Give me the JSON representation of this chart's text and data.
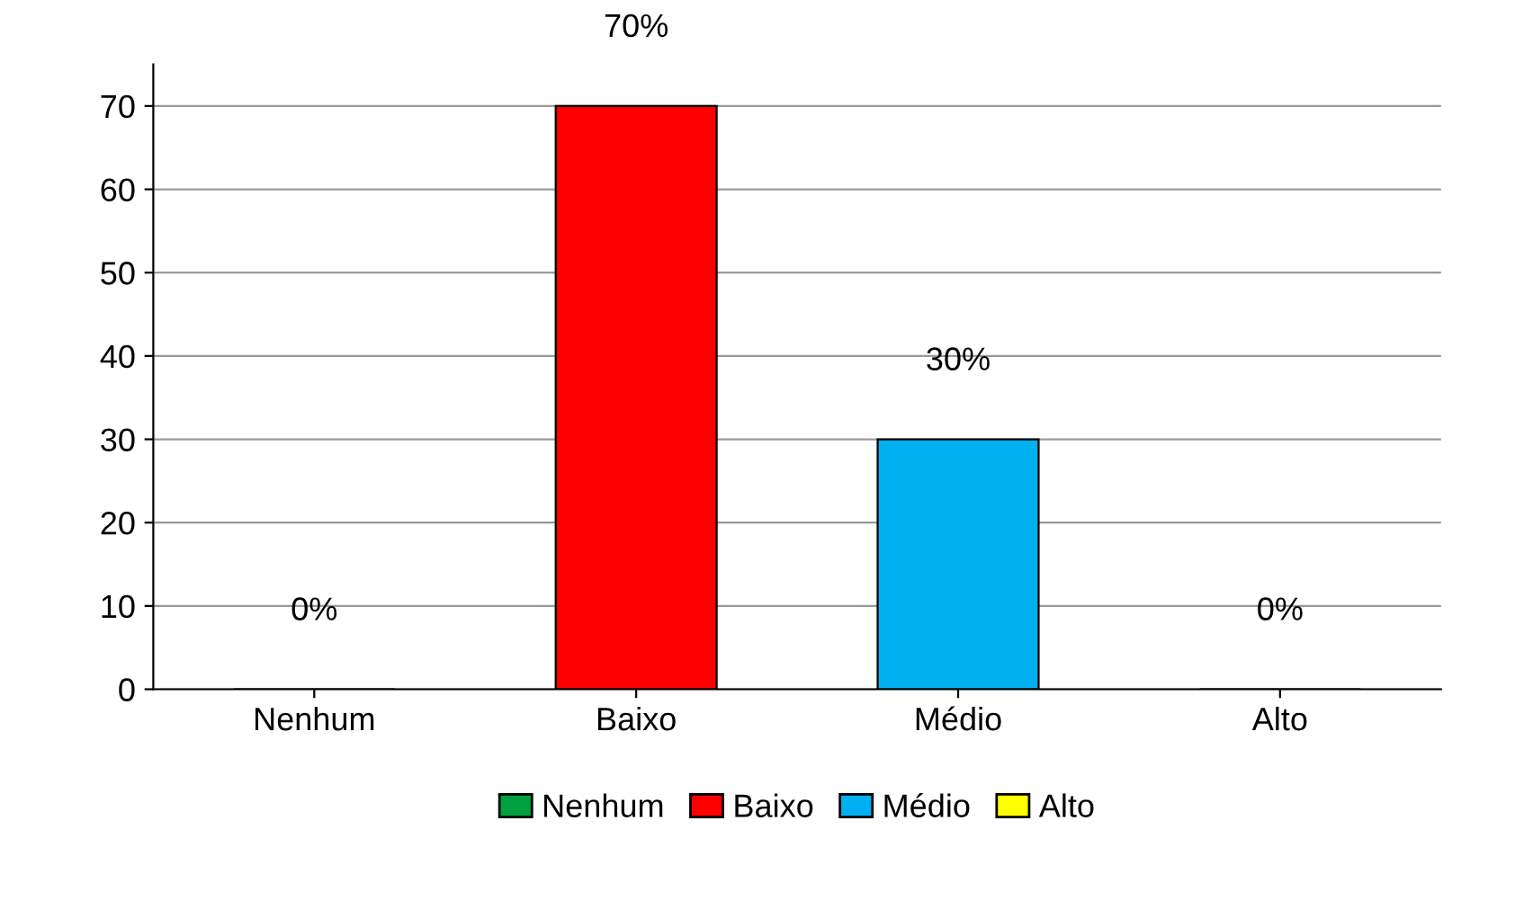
{
  "chart_data": {
    "type": "bar",
    "categories": [
      "Nenhum",
      "Baixo",
      "Médio",
      "Alto"
    ],
    "series": [
      {
        "name": "Nenhum",
        "color": "#00a040",
        "values": [
          0,
          null,
          null,
          null
        ],
        "value_labels": [
          "0%",
          null,
          null,
          null
        ]
      },
      {
        "name": "Baixo",
        "color": "#ff0000",
        "values": [
          null,
          70,
          null,
          null
        ],
        "value_labels": [
          null,
          "70%",
          null,
          null
        ]
      },
      {
        "name": "Médio",
        "color": "#00b0f0",
        "values": [
          null,
          null,
          30,
          null
        ],
        "value_labels": [
          null,
          null,
          "30%",
          null
        ]
      },
      {
        "name": "Alto",
        "color": "#ffff00",
        "values": [
          null,
          null,
          null,
          0
        ],
        "value_labels": [
          null,
          null,
          null,
          "0%"
        ]
      }
    ],
    "ylim": [
      0,
      75
    ],
    "yticks": [
      0,
      10,
      20,
      30,
      40,
      50,
      60,
      70
    ],
    "grid": "y",
    "legend": "bottom"
  }
}
